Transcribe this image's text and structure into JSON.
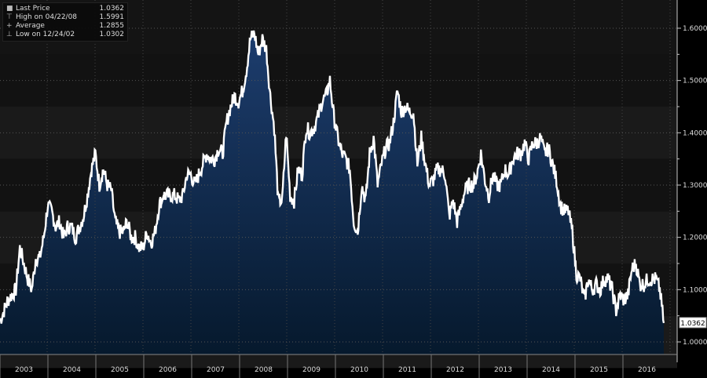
{
  "legend": [
    {
      "symbol": "■",
      "label": "Last Price",
      "value": "1.0362"
    },
    {
      "symbol": "⊤",
      "label": "High on 04/22/08",
      "value": "1.5991"
    },
    {
      "symbol": "+",
      "label": "Average",
      "value": "1.2855"
    },
    {
      "symbol": "⊥",
      "label": "Low on 12/24/02",
      "value": "1.0302"
    }
  ],
  "colors": {
    "background": "#000000",
    "area": "#0f2a4f",
    "line": "#ffffff",
    "band": "#161616",
    "axis": "#c8c8c8"
  },
  "chart_data": {
    "type": "area",
    "title": "",
    "xlabel": "",
    "ylabel": "",
    "ylim": [
      0.975,
      1.625
    ],
    "grid": true,
    "y_axis_side": "right",
    "legend_position": "top-left",
    "yticks": [
      "1.0000",
      "1.1000",
      "1.2000",
      "1.3000",
      "1.4000",
      "1.5000",
      "1.6000"
    ],
    "xticks": [
      "2003",
      "2004",
      "2005",
      "2006",
      "2007",
      "2008",
      "2009",
      "2010",
      "2011",
      "2012",
      "2013",
      "2014",
      "2015",
      "2016"
    ],
    "last_price_label": "1.0362",
    "start": "2002-12",
    "values": [
      1.04,
      1.06,
      1.08,
      1.09,
      1.1,
      1.18,
      1.15,
      1.12,
      1.1,
      1.16,
      1.16,
      1.2,
      1.26,
      1.25,
      1.22,
      1.23,
      1.2,
      1.22,
      1.22,
      1.2,
      1.22,
      1.24,
      1.28,
      1.33,
      1.36,
      1.3,
      1.33,
      1.3,
      1.29,
      1.23,
      1.21,
      1.21,
      1.23,
      1.2,
      1.2,
      1.18,
      1.18,
      1.21,
      1.19,
      1.21,
      1.26,
      1.28,
      1.28,
      1.28,
      1.28,
      1.27,
      1.28,
      1.32,
      1.32,
      1.3,
      1.32,
      1.34,
      1.36,
      1.35,
      1.35,
      1.37,
      1.36,
      1.42,
      1.45,
      1.47,
      1.46,
      1.48,
      1.52,
      1.58,
      1.59,
      1.55,
      1.58,
      1.56,
      1.47,
      1.41,
      1.27,
      1.27,
      1.4,
      1.28,
      1.27,
      1.33,
      1.32,
      1.41,
      1.4,
      1.41,
      1.43,
      1.46,
      1.47,
      1.5,
      1.43,
      1.39,
      1.36,
      1.35,
      1.33,
      1.23,
      1.21,
      1.3,
      1.27,
      1.36,
      1.39,
      1.3,
      1.34,
      1.37,
      1.38,
      1.42,
      1.48,
      1.44,
      1.45,
      1.44,
      1.44,
      1.34,
      1.39,
      1.34,
      1.3,
      1.31,
      1.33,
      1.33,
      1.32,
      1.24,
      1.27,
      1.23,
      1.26,
      1.29,
      1.3,
      1.3,
      1.32,
      1.36,
      1.31,
      1.28,
      1.32,
      1.3,
      1.3,
      1.33,
      1.32,
      1.35,
      1.36,
      1.36,
      1.38,
      1.35,
      1.38,
      1.38,
      1.39,
      1.36,
      1.37,
      1.34,
      1.31,
      1.26,
      1.25,
      1.25,
      1.21,
      1.13,
      1.12,
      1.08,
      1.12,
      1.1,
      1.11,
      1.1,
      1.12,
      1.12,
      1.1,
      1.06,
      1.09,
      1.08,
      1.09,
      1.14,
      1.15,
      1.11,
      1.11,
      1.12,
      1.12,
      1.12,
      1.1,
      1.0362
    ]
  }
}
